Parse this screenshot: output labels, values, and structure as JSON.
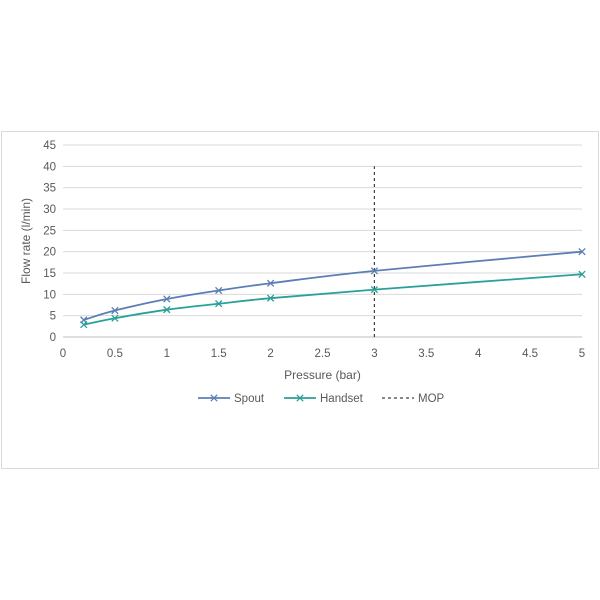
{
  "chart_data": {
    "type": "line",
    "title": "",
    "xlabel": "Pressure (bar)",
    "ylabel": "Flow rate (l/min)",
    "xlim": [
      0,
      5
    ],
    "ylim": [
      0,
      45
    ],
    "x_ticks": [
      0,
      0.5,
      1,
      1.5,
      2,
      2.5,
      3,
      3.5,
      4,
      4.5,
      5
    ],
    "x_tick_labels": [
      "0",
      "0.5",
      "1",
      "1.5",
      "2",
      "2.5",
      "3",
      "3.5",
      "4",
      "4.5",
      "5"
    ],
    "y_ticks": [
      0,
      5,
      10,
      15,
      20,
      25,
      30,
      35,
      40,
      45
    ],
    "y_tick_labels": [
      "0",
      "5",
      "10",
      "15",
      "20",
      "25",
      "30",
      "35",
      "40",
      "45"
    ],
    "grid": "horizontal",
    "legend_position": "bottom",
    "series": [
      {
        "name": "Spout",
        "color": "#5b7fb5",
        "marker": "x",
        "x": [
          0.2,
          0.5,
          1,
          1.5,
          2,
          3,
          5
        ],
        "values": [
          4.0,
          6.2,
          8.9,
          10.9,
          12.6,
          15.5,
          20.0
        ]
      },
      {
        "name": "Handset",
        "color": "#2aa198",
        "marker": "x",
        "x": [
          0.2,
          0.5,
          1,
          1.5,
          2,
          3,
          5
        ],
        "values": [
          2.9,
          4.4,
          6.4,
          7.8,
          9.1,
          11.1,
          14.7
        ]
      }
    ],
    "reference_lines": [
      {
        "name": "MOP",
        "axis": "x",
        "value": 3,
        "y_from": 0,
        "y_to": 40,
        "color": "#404040",
        "style": "dashed"
      }
    ]
  }
}
